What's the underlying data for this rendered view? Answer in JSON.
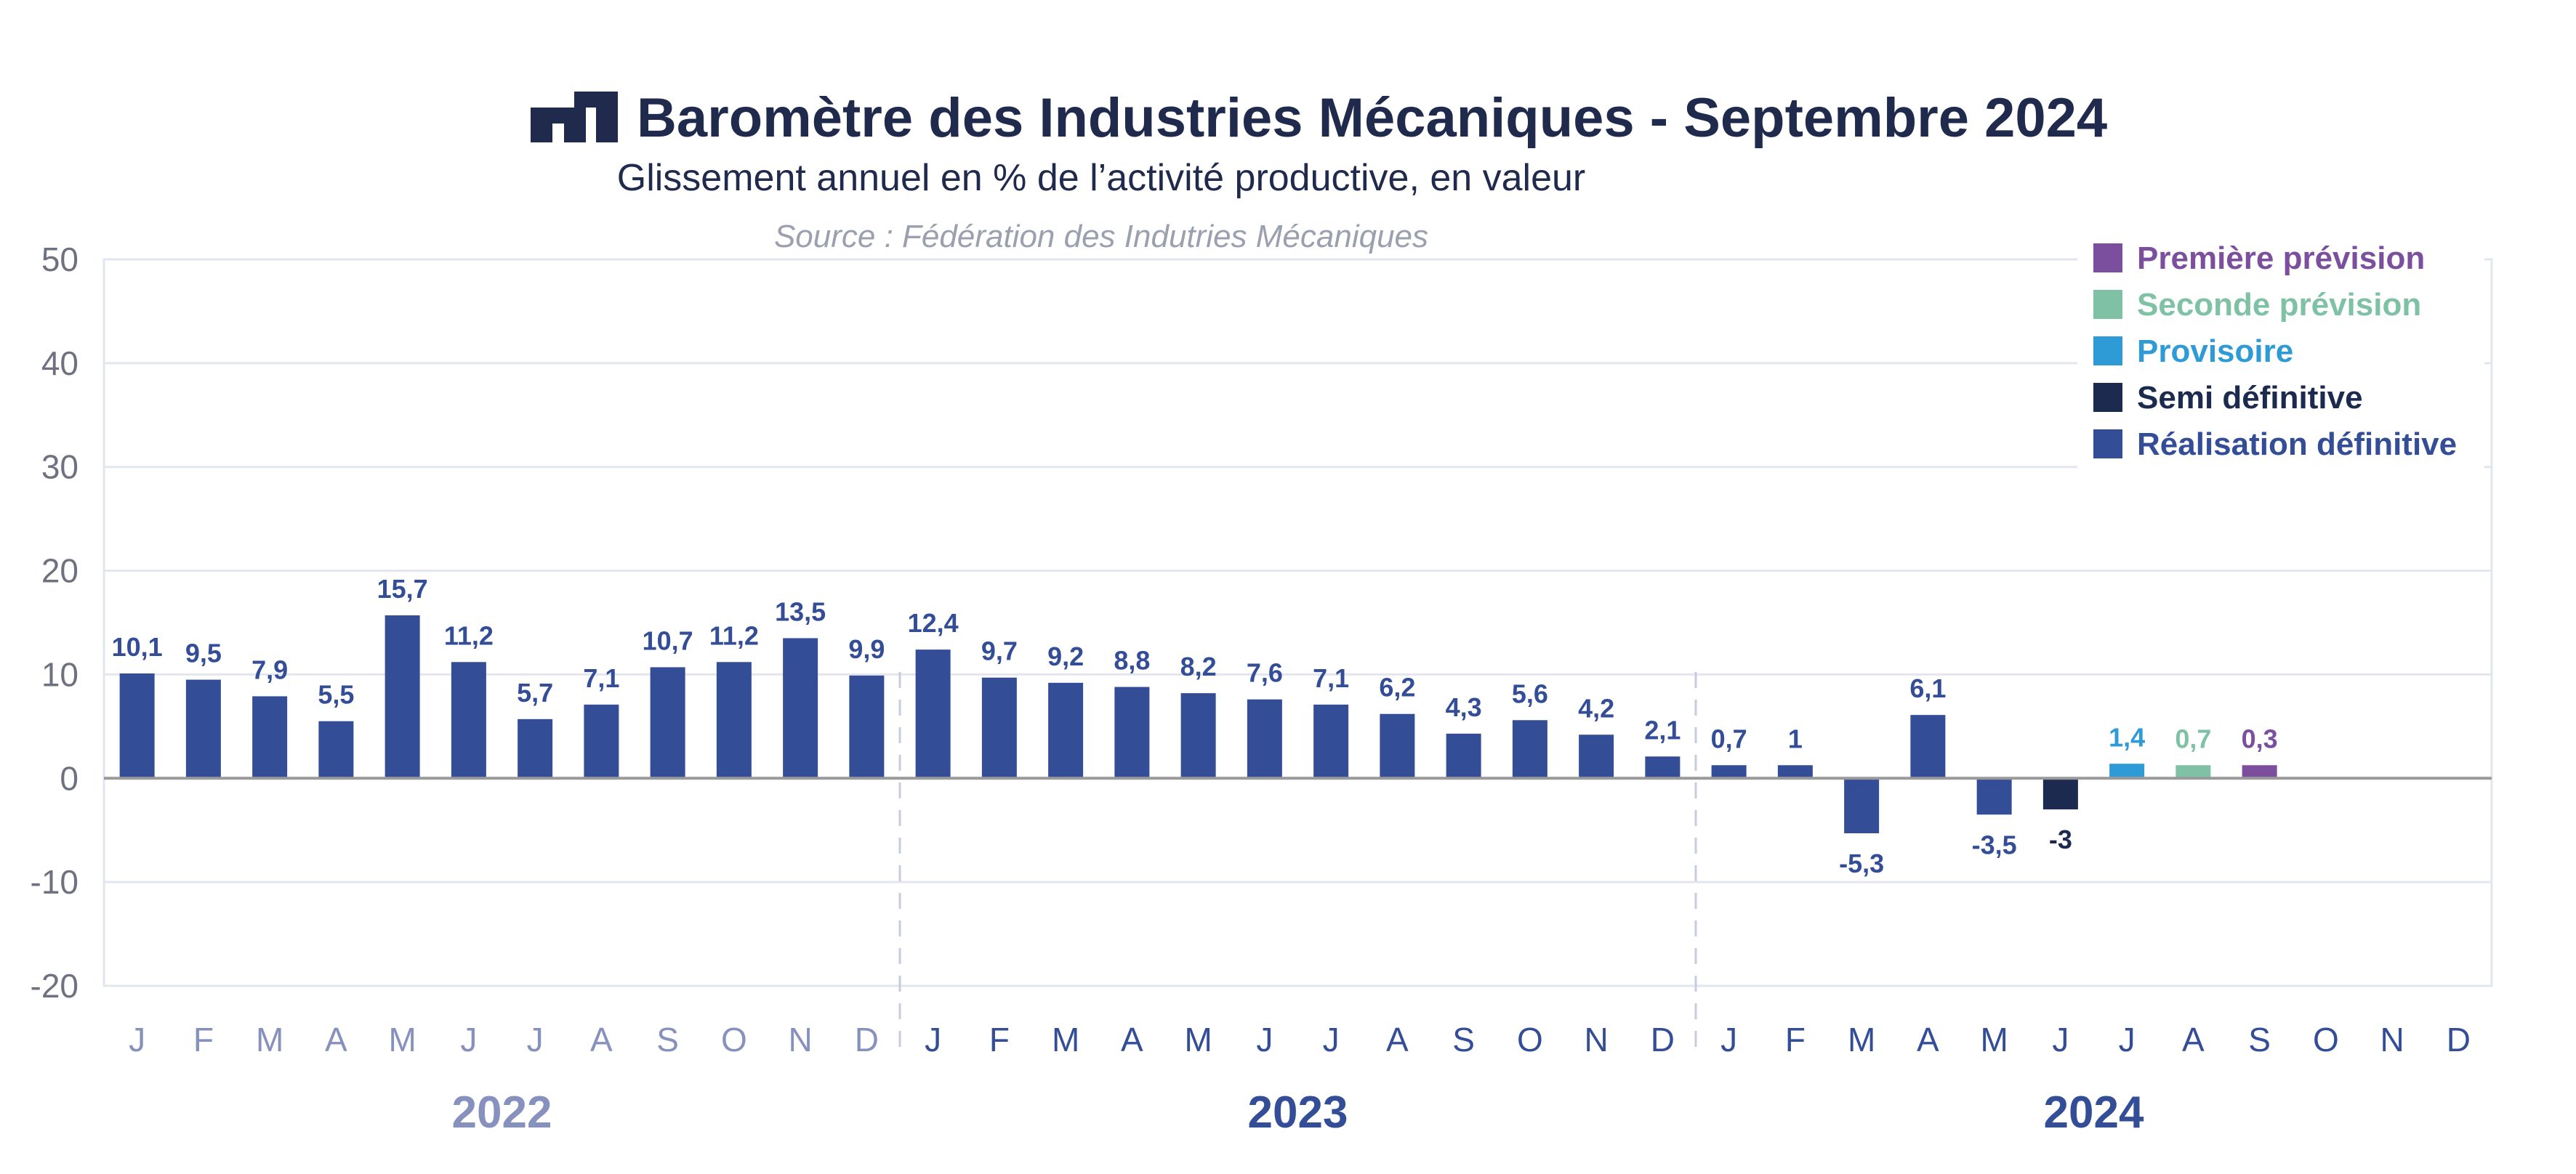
{
  "header": {
    "title": "Baromètre des Industries Mécaniques - Septembre 2024",
    "subtitle": "Glissement annuel en % de l’activité productive, en valeur",
    "source": "Source : Fédération des Indutries Mécaniques"
  },
  "colors": {
    "premiere_prevision": "#7b4f9d",
    "seconde_prevision": "#7fc1a4",
    "provisoire": "#2e9bd6",
    "semi_definitive": "#1c2a4f",
    "realisation_definitive": "#344d97",
    "year_2022_labels": "#8791bd",
    "year_2023_labels": "#344d97",
    "year_2024_labels": "#344d97",
    "grid": "#e3e6ef",
    "zero_line": "#9a9a9a"
  },
  "chart_data": {
    "type": "bar",
    "title": "Baromètre des Industries Mécaniques - Septembre 2024",
    "ylim": [
      -20,
      50
    ],
    "yticks": [
      "-20",
      "-10",
      "0",
      "10",
      "20",
      "30",
      "40",
      "50"
    ],
    "grid": true,
    "legend_position": "top-right",
    "years": [
      "2022",
      "2023",
      "2024"
    ],
    "months": [
      "J",
      "F",
      "M",
      "A",
      "M",
      "J",
      "J",
      "A",
      "S",
      "O",
      "N",
      "D"
    ],
    "categories": [
      "J 2022",
      "F 2022",
      "M 2022",
      "A 2022",
      "M 2022",
      "J 2022",
      "J 2022",
      "A 2022",
      "S 2022",
      "O 2022",
      "N 2022",
      "D 2022",
      "J 2023",
      "F 2023",
      "M 2023",
      "A 2023",
      "M 2023",
      "J 2023",
      "J 2023",
      "A 2023",
      "S 2023",
      "O 2023",
      "N 2023",
      "D 2023",
      "J 2024",
      "F 2024",
      "M 2024",
      "A 2024",
      "M 2024",
      "J 2024",
      "J 2024",
      "A 2024",
      "S 2024",
      "O 2024",
      "N 2024",
      "D 2024"
    ],
    "values": [
      10.1,
      9.5,
      7.9,
      5.5,
      15.7,
      11.2,
      5.7,
      7.1,
      10.7,
      11.2,
      13.5,
      9.9,
      12.4,
      9.7,
      9.2,
      8.8,
      8.2,
      7.6,
      7.1,
      6.2,
      4.3,
      5.6,
      4.2,
      2.1,
      0.7,
      1,
      -5.3,
      6.1,
      -3.5,
      -3,
      1.4,
      0.7,
      0.3,
      null,
      null,
      null
    ],
    "labels": [
      "10,1",
      "9,5",
      "7,9",
      "5,5",
      "15,7",
      "11,2",
      "5,7",
      "7,1",
      "10,7",
      "11,2",
      "13,5",
      "9,9",
      "12,4",
      "9,7",
      "9,2",
      "8,8",
      "8,2",
      "7,6",
      "7,1",
      "6,2",
      "4,3",
      "5,6",
      "4,2",
      "2,1",
      "0,7",
      "1",
      "-5,3",
      "6,1",
      "-3,5",
      "-3",
      "1,4",
      "0,7",
      "0,3",
      "",
      "",
      ""
    ],
    "status": [
      "realisation_definitive",
      "realisation_definitive",
      "realisation_definitive",
      "realisation_definitive",
      "realisation_definitive",
      "realisation_definitive",
      "realisation_definitive",
      "realisation_definitive",
      "realisation_definitive",
      "realisation_definitive",
      "realisation_definitive",
      "realisation_definitive",
      "realisation_definitive",
      "realisation_definitive",
      "realisation_definitive",
      "realisation_definitive",
      "realisation_definitive",
      "realisation_definitive",
      "realisation_definitive",
      "realisation_definitive",
      "realisation_definitive",
      "realisation_definitive",
      "realisation_definitive",
      "realisation_definitive",
      "realisation_definitive",
      "realisation_definitive",
      "realisation_definitive",
      "realisation_definitive",
      "realisation_definitive",
      "semi_definitive",
      "provisoire",
      "seconde_prevision",
      "premiere_prevision",
      "",
      "",
      ""
    ],
    "legend": [
      {
        "key": "premiere_prevision",
        "name": "Première prévision"
      },
      {
        "key": "seconde_prevision",
        "name": "Seconde prévision"
      },
      {
        "key": "provisoire",
        "name": "Provisoire"
      },
      {
        "key": "semi_definitive",
        "name": "Semi définitive"
      },
      {
        "key": "realisation_definitive",
        "name": "Réalisation définitive"
      }
    ]
  }
}
